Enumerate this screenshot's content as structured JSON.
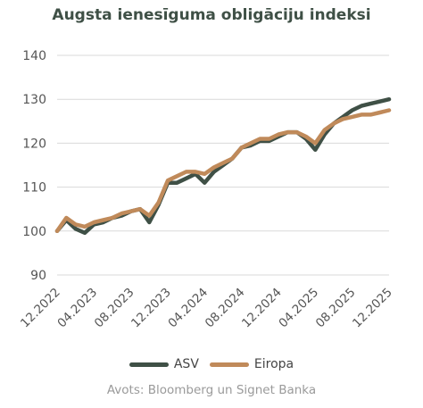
{
  "colors": {
    "asv": "#3f5046",
    "eiropa": "#c08a5a",
    "grid": "#d9d9d9"
  },
  "chart_data": {
    "type": "line",
    "title": "Augsta ienesīguma obligāciju indeksi",
    "xlabel": "",
    "ylabel": "",
    "ylim": [
      90,
      140
    ],
    "yticks": [
      "90",
      "100",
      "110",
      "120",
      "130",
      "140"
    ],
    "xticks": [
      "12.2022",
      "04.2023",
      "08.2023",
      "12.2023",
      "04.2024",
      "08.2024",
      "12.2024",
      "04.2025",
      "08.2025",
      "12.2025"
    ],
    "grid": "horizontal",
    "legend_position": "bottom",
    "x": [
      "12.2022",
      "01.2023",
      "02.2023",
      "03.2023",
      "04.2023",
      "05.2023",
      "06.2023",
      "07.2023",
      "08.2023",
      "09.2023",
      "10.2023",
      "11.2023",
      "12.2023",
      "01.2024",
      "02.2024",
      "03.2024",
      "04.2024",
      "05.2024",
      "06.2024",
      "07.2024",
      "08.2024",
      "09.2024",
      "10.2024",
      "11.2024",
      "12.2024",
      "01.2025",
      "02.2025",
      "03.2025",
      "04.2025",
      "05.2025",
      "06.2025",
      "07.2025",
      "08.2025",
      "09.2025",
      "10.2025",
      "11.2025",
      "12.2025"
    ],
    "series": [
      {
        "name": "ASV",
        "color": "#3f5046",
        "values": [
          100.0,
          102.5,
          100.5,
          99.6,
          101.5,
          102.0,
          103.0,
          103.5,
          104.5,
          105.0,
          102.0,
          106.0,
          111.0,
          111.0,
          112.0,
          113.0,
          111.0,
          113.5,
          115.0,
          116.5,
          119.0,
          119.5,
          120.5,
          120.5,
          121.5,
          122.5,
          122.5,
          121.0,
          118.5,
          122.0,
          124.5,
          126.0,
          127.5,
          128.5,
          129.0,
          129.5,
          130.0
        ]
      },
      {
        "name": "Eiropa",
        "color": "#c08a5a",
        "values": [
          100.0,
          103.0,
          101.5,
          101.0,
          102.0,
          102.5,
          103.0,
          104.0,
          104.5,
          105.0,
          103.5,
          106.5,
          111.5,
          112.5,
          113.5,
          113.5,
          113.0,
          114.5,
          115.5,
          116.5,
          119.0,
          120.0,
          121.0,
          121.0,
          122.0,
          122.5,
          122.5,
          121.5,
          120.0,
          123.0,
          124.5,
          125.5,
          126.0,
          126.5,
          126.5,
          127.0,
          127.5
        ]
      }
    ]
  },
  "legend": {
    "asv": "ASV",
    "eiropa": "Eiropa"
  },
  "source": "Avots: Bloomberg un Signet Banka"
}
